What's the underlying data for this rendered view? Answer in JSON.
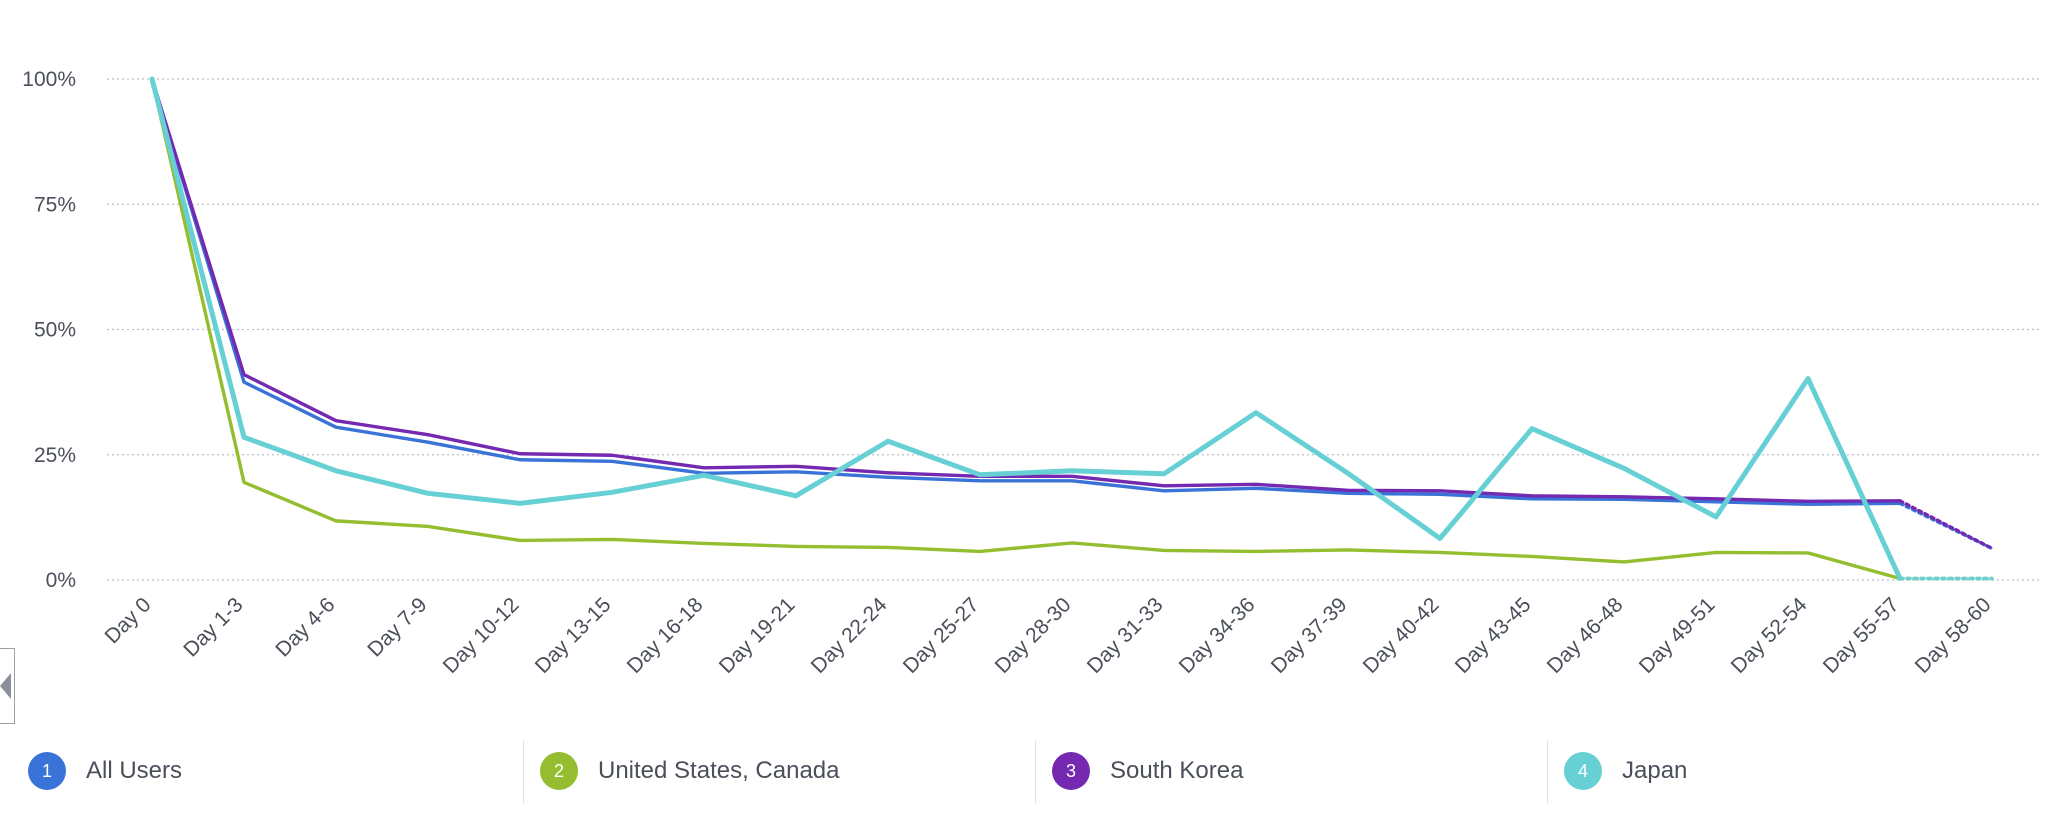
{
  "chart_data": {
    "type": "line",
    "categories": [
      "Day 0",
      "Day 1-3",
      "Day 4-6",
      "Day 7-9",
      "Day 10-12",
      "Day 13-15",
      "Day 16-18",
      "Day 19-21",
      "Day 22-24",
      "Day 25-27",
      "Day 28-30",
      "Day 31-33",
      "Day 34-36",
      "Day 37-39",
      "Day 40-42",
      "Day 43-45",
      "Day 46-48",
      "Day 49-51",
      "Day 52-54",
      "Day 55-57",
      "Day 58-60"
    ],
    "yticks": [
      "0%",
      "25%",
      "50%",
      "75%",
      "100%"
    ],
    "ylim": [
      0,
      100
    ],
    "grid": true,
    "legend_position": "bottom",
    "series": [
      {
        "name": "All Users",
        "badge": "1",
        "color": "#3a73d8",
        "values": [
          100,
          39.5,
          30.5,
          27.5,
          24,
          23.7,
          21.3,
          21.6,
          20.5,
          19.8,
          19.8,
          17.8,
          18.3,
          17.3,
          17.1,
          16.2,
          16.1,
          15.6,
          15.1,
          15.3,
          null
        ],
        "projected": [
          15.3,
          6.3
        ]
      },
      {
        "name": "United States, Canada",
        "badge": "2",
        "color": "#95bd30",
        "values": [
          100,
          19.5,
          11.8,
          10.7,
          7.9,
          8.1,
          7.3,
          6.7,
          6.5,
          5.7,
          7.4,
          5.9,
          5.7,
          6.0,
          5.5,
          4.7,
          3.6,
          5.5,
          5.4,
          0.3,
          null
        ],
        "projected": [
          0.3,
          0.3
        ]
      },
      {
        "name": "South Korea",
        "badge": "3",
        "color": "#7429b0",
        "values": [
          100,
          41,
          31.8,
          29,
          25.2,
          24.9,
          22.4,
          22.7,
          21.4,
          20.7,
          20.7,
          18.8,
          19.1,
          17.9,
          17.8,
          16.8,
          16.6,
          16.2,
          15.7,
          15.8,
          null
        ],
        "projected": [
          15.8,
          6.3
        ]
      },
      {
        "name": "Japan",
        "badge": "4",
        "color": "#66d0d5",
        "values": [
          100,
          28.5,
          21.8,
          17.3,
          15.3,
          17.5,
          20.9,
          16.8,
          27.7,
          21.0,
          21.8,
          21.2,
          33.4,
          21.3,
          8.3,
          30.2,
          22.3,
          12.6,
          40.2,
          0.3,
          null
        ],
        "projected": [
          0.3,
          0.3
        ]
      }
    ]
  }
}
